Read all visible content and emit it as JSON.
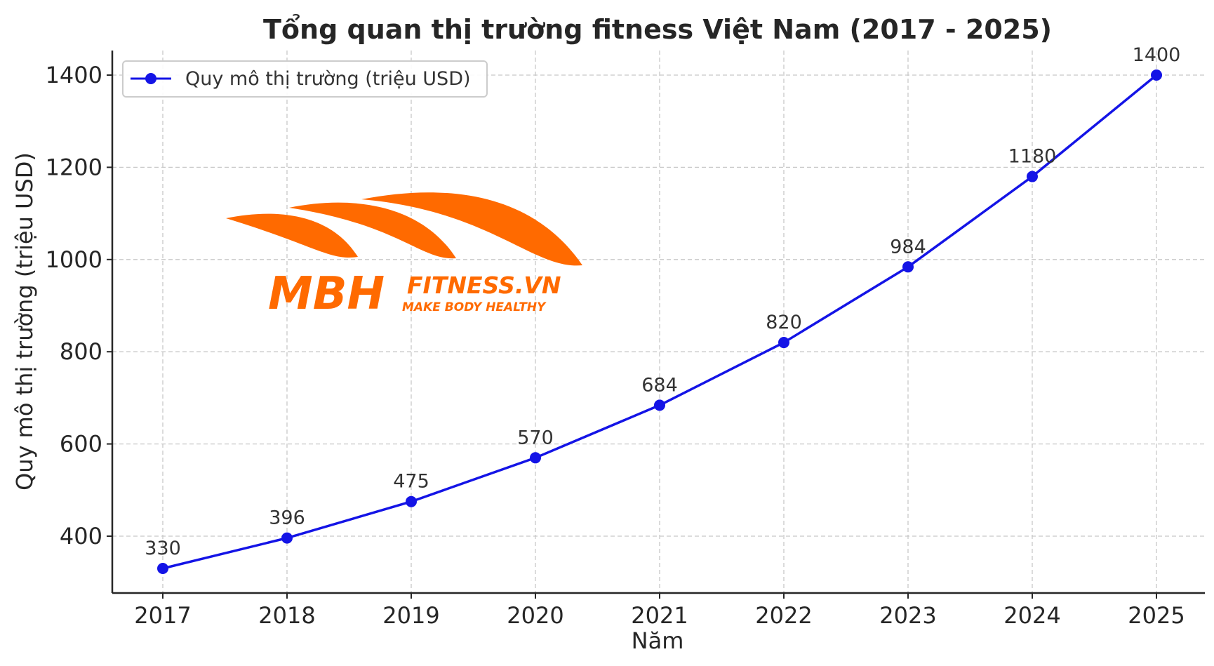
{
  "chart_data": {
    "type": "line",
    "title": "Tổng quan thị trường fitness Việt Nam (2017 - 2025)",
    "xlabel": "Năm",
    "ylabel": "Quy mô thị trường (triệu USD)",
    "categories": [
      "2017",
      "2018",
      "2019",
      "2020",
      "2021",
      "2022",
      "2023",
      "2024",
      "2025"
    ],
    "series": [
      {
        "name": "Quy mô thị trường (triệu USD)",
        "values": [
          330,
          396,
          475,
          570,
          684,
          820,
          984,
          1180,
          1400
        ],
        "color": "#1414e6"
      }
    ],
    "data_labels": [
      "330",
      "396",
      "475",
      "570",
      "684",
      "820",
      "984",
      "1180",
      "1400"
    ],
    "yticks": [
      "400",
      "600",
      "800",
      "1000",
      "1200",
      "1400"
    ],
    "ylim": [
      270,
      1455
    ],
    "grid": true,
    "legend_position": "top-left"
  },
  "watermark": {
    "text_main": "MBH",
    "text_site": "FITNESS.VN",
    "text_slogan": "MAKE BODY HEALTHY",
    "color": "#ff6a00"
  }
}
